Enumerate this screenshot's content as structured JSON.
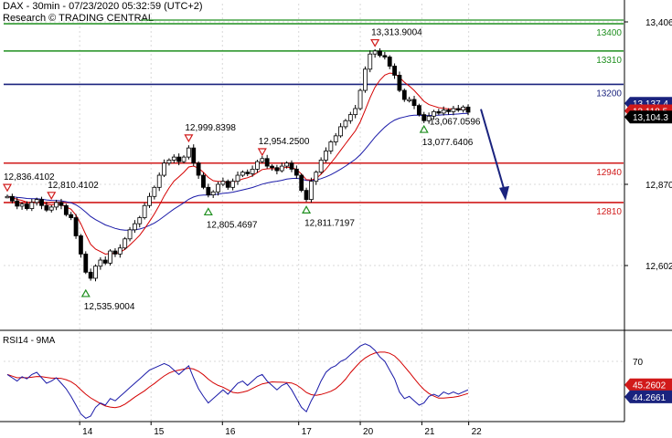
{
  "header": {
    "title": "DAX - 30min - 07/23/2020 05:32:59 (UTC+2)",
    "subtitle": "Research © TRADING CENTRAL"
  },
  "colors": {
    "price": "#000000",
    "ma_fast": "#d40000",
    "ma_slow": "#1a1aa8",
    "resistance_green": "#1f8f1f",
    "pivot_blue": "#1a237e",
    "support_red": "#d11a1a",
    "arrow": "#1a237e",
    "high_marker": "#d11a1a",
    "low_marker": "#1f8f1f"
  },
  "chart_data": [
    {
      "type": "candlestick",
      "title": "DAX - 30min",
      "x_ticks": [
        "14",
        "15",
        "16",
        "17",
        "20",
        "21",
        "22"
      ],
      "y_ticks": [
        13406,
        12870,
        12602
      ],
      "ylim": [
        12380,
        13480
      ],
      "grid": true,
      "price_series": [
        12830,
        12815,
        12798,
        12805,
        12790,
        12810,
        12820,
        12800,
        12785,
        12795,
        12810,
        12800,
        12770,
        12760,
        12700,
        12640,
        12580,
        12560,
        12600,
        12620,
        12610,
        12650,
        12640,
        12660,
        12690,
        12720,
        12740,
        12760,
        12800,
        12830,
        12860,
        12900,
        12940,
        12950,
        12960,
        12945,
        12960,
        12990,
        12940,
        12900,
        12860,
        12835,
        12845,
        12870,
        12880,
        12860,
        12880,
        12900,
        12910,
        12905,
        12920,
        12945,
        12955,
        12930,
        12925,
        12915,
        12930,
        12940,
        12920,
        12900,
        12850,
        12820,
        12880,
        12910,
        12950,
        12980,
        13010,
        13030,
        13060,
        13080,
        13100,
        13120,
        13180,
        13250,
        13300,
        13310,
        13295,
        13290,
        13260,
        13230,
        13180,
        13150,
        13150,
        13130,
        13100,
        13080,
        13095,
        13110,
        13105,
        13115,
        13110,
        13120,
        13115,
        13125,
        13108
      ],
      "series": [
        {
          "name": "MA fast",
          "smoothing_period": 8
        },
        {
          "name": "MA slow",
          "smoothing_period": 30
        }
      ],
      "levels": [
        {
          "label": "13400",
          "value": 13400,
          "color": "green"
        },
        {
          "label": "13310",
          "value": 13310,
          "color": "green"
        },
        {
          "label": "13200",
          "value": 13200,
          "color": "blue"
        },
        {
          "label": "12940",
          "value": 12940,
          "color": "red"
        },
        {
          "label": "12810",
          "value": 12810,
          "color": "red"
        }
      ],
      "price_tags": [
        {
          "label": "13,137.4",
          "value": 13137.4,
          "color": "blue"
        },
        {
          "label": "13,118.5",
          "value": 13118.5,
          "color": "red"
        },
        {
          "label": "13,104.3",
          "value": 13104.3,
          "color": "black"
        }
      ],
      "annotations": [
        {
          "label": "12,836.4102",
          "value": 12836.41,
          "bar": 0,
          "kind": "high"
        },
        {
          "label": "12,810.4102",
          "value": 12810.41,
          "bar": 9,
          "kind": "high"
        },
        {
          "label": "12,535.9004",
          "value": 12535.9,
          "bar": 16,
          "kind": "low"
        },
        {
          "label": "12,999.8398",
          "value": 12999.84,
          "bar": 37,
          "kind": "high"
        },
        {
          "label": "12,805.4697",
          "value": 12805.47,
          "bar": 41,
          "kind": "low"
        },
        {
          "label": "12,954.2500",
          "value": 12954.25,
          "bar": 52,
          "kind": "high"
        },
        {
          "label": "12,811.7197",
          "value": 12811.72,
          "bar": 61,
          "kind": "low"
        },
        {
          "label": "13,313.9004",
          "value": 13313.9,
          "bar": 75,
          "kind": "high"
        },
        {
          "label": "13,077.6406",
          "value": 13077.64,
          "bar": 85,
          "kind": "low"
        },
        {
          "label": "13,067.0596",
          "value": 13067.06,
          "bar": 88,
          "kind": "label"
        }
      ],
      "forecast_arrow": {
        "from": 13118,
        "to": 12810
      }
    },
    {
      "type": "line",
      "title": "RSI14 - 9MA",
      "y_ticks": [
        70
      ],
      "ylim": [
        15,
        95
      ],
      "series": [
        {
          "name": "RSI14",
          "values": [
            58,
            55,
            52,
            56,
            54,
            58,
            60,
            55,
            50,
            52,
            55,
            50,
            45,
            38,
            30,
            22,
            18,
            20,
            28,
            32,
            30,
            36,
            34,
            38,
            42,
            46,
            50,
            54,
            58,
            62,
            64,
            66,
            68,
            66,
            62,
            58,
            62,
            66,
            55,
            45,
            38,
            32,
            36,
            40,
            44,
            40,
            45,
            50,
            52,
            48,
            52,
            56,
            58,
            52,
            48,
            44,
            48,
            50,
            44,
            36,
            28,
            24,
            34,
            42,
            52,
            60,
            64,
            66,
            70,
            72,
            76,
            80,
            84,
            86,
            84,
            80,
            74,
            70,
            62,
            54,
            42,
            36,
            38,
            34,
            30,
            32,
            38,
            40,
            38,
            42,
            40,
            42,
            40,
            42,
            44
          ]
        },
        {
          "name": "9MA",
          "smoothing_period": 9
        }
      ],
      "value_tags": [
        {
          "label": "45.2602",
          "value": 45.26,
          "color": "red"
        },
        {
          "label": "44.2661",
          "value": 44.27,
          "color": "blue"
        }
      ]
    }
  ]
}
